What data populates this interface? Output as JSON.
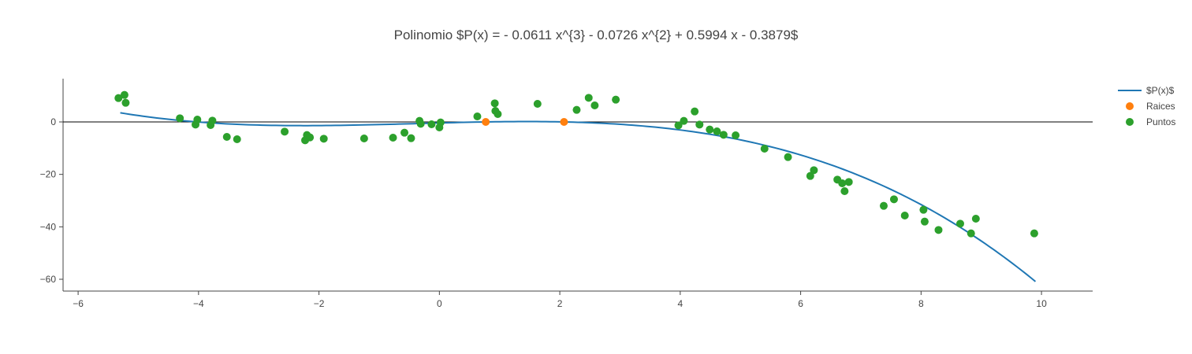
{
  "chart_data": {
    "type": "scatter",
    "title": "Polinomio $P(x) = - 0.0611 x^{3} - 0.0726 x^{2} + 0.5994 x - 0.3879$",
    "xlabel": "",
    "ylabel": "",
    "xlim": [
      -6.25,
      10.85
    ],
    "ylim": [
      -64.5,
      16.5
    ],
    "x_ticks": [
      -6,
      -4,
      -2,
      0,
      2,
      4,
      6,
      8,
      10
    ],
    "x_tick_labels": [
      "−6",
      "−4",
      "−2",
      "0",
      "2",
      "4",
      "6",
      "8",
      "10"
    ],
    "y_ticks": [
      0,
      -20,
      -40,
      -60
    ],
    "y_tick_labels": [
      "0",
      "−20",
      "−40",
      "−60"
    ],
    "zero_line": true,
    "grid": false,
    "legend_position": "top-right",
    "coefficients": [
      -0.0611,
      -0.0726,
      0.5994,
      -0.3879
    ],
    "curve_x_range": [
      -5.3,
      9.9
    ],
    "colors": {
      "curve": "#1f77b4",
      "roots": "#ff7f0e",
      "points": "#2ca02c",
      "axis": "#444444"
    },
    "series": [
      {
        "name": "$P(x)$",
        "kind": "line"
      },
      {
        "name": "Raices",
        "kind": "markers",
        "x": [
          0.77,
          2.07
        ],
        "y": [
          0,
          0
        ]
      },
      {
        "name": "Puntos",
        "kind": "markers",
        "x": [
          -5.33,
          -5.23,
          -5.21,
          -4.31,
          -4.05,
          -4.02,
          -3.8,
          -3.77,
          -3.53,
          -3.36,
          -2.57,
          -2.23,
          -2.2,
          -2.15,
          -1.92,
          -1.25,
          -0.77,
          -0.58,
          -0.47,
          -0.33,
          -0.31,
          -0.13,
          0.0,
          0.02,
          0.63,
          0.92,
          0.93,
          0.97,
          1.63,
          2.28,
          2.48,
          2.58,
          2.93,
          3.97,
          4.06,
          4.24,
          4.32,
          4.49,
          4.61,
          4.72,
          4.92,
          5.4,
          5.79,
          6.16,
          6.22,
          6.61,
          6.69,
          6.73,
          6.8,
          7.38,
          7.55,
          7.73,
          8.04,
          8.06,
          8.29,
          8.65,
          8.83,
          8.91,
          9.88
        ],
        "y": [
          9.1,
          10.3,
          7.3,
          1.4,
          -1.0,
          0.9,
          -1.2,
          0.5,
          -5.7,
          -6.6,
          -3.7,
          -7.0,
          -5.0,
          -5.9,
          -6.4,
          -6.3,
          -6.0,
          -4.1,
          -6.2,
          0.4,
          -0.7,
          -0.9,
          -2.1,
          -0.2,
          2.1,
          7.1,
          4.2,
          3.0,
          6.9,
          4.6,
          9.2,
          6.3,
          8.5,
          -1.3,
          0.4,
          4.0,
          -1.0,
          -2.9,
          -3.6,
          -4.9,
          -5.1,
          -10.2,
          -13.4,
          -20.6,
          -18.4,
          -22.0,
          -23.4,
          -26.4,
          -22.9,
          -32.0,
          -29.5,
          -35.7,
          -33.5,
          -38.0,
          -41.2,
          -38.8,
          -42.5,
          -36.9,
          -42.5
        ]
      }
    ]
  }
}
